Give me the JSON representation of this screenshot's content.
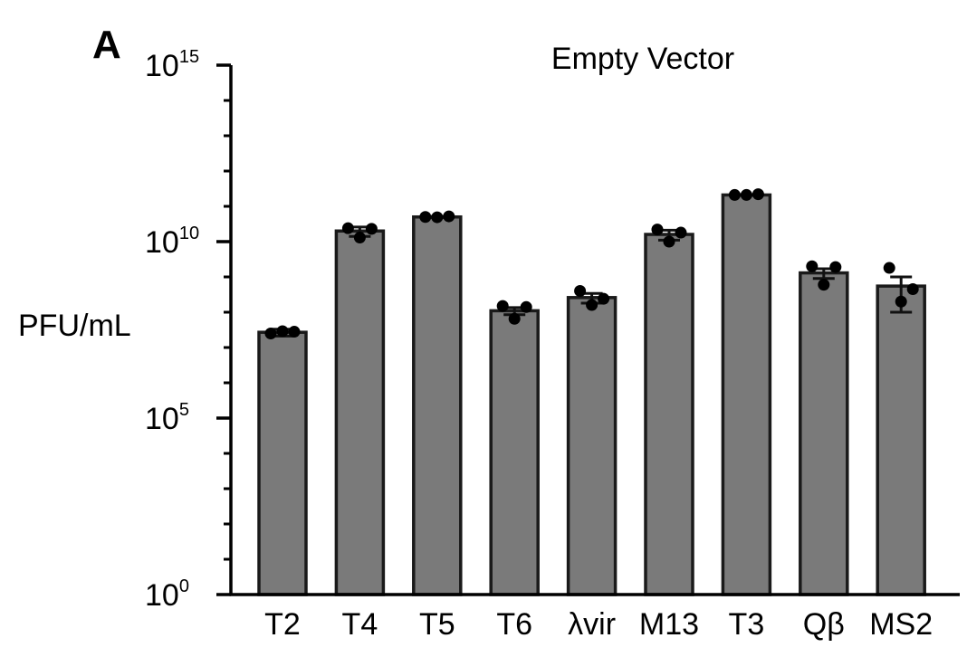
{
  "panel_label": "A",
  "chart_data": {
    "type": "bar",
    "title": "Empty Vector",
    "xlabel": "",
    "ylabel": "PFU/mL",
    "yscale": "log",
    "ylim": [
      1,
      1000000000000000.0
    ],
    "ytick_labels": [
      {
        "value": 1,
        "base": "10",
        "exp": "0"
      },
      {
        "value": 100000,
        "base": "10",
        "exp": "5"
      },
      {
        "value": 10000000000,
        "base": "10",
        "exp": "10"
      },
      {
        "value": 1000000000000000,
        "base": "10",
        "exp": "15"
      }
    ],
    "minor_ticks": "each decade",
    "categories": [
      "T2",
      "T4",
      "T5",
      "T6",
      "λvir",
      "M13",
      "T3",
      "Qβ",
      "MS2"
    ],
    "values": [
      27000000.0,
      20000000000.0,
      50000000000.0,
      110000000.0,
      260000000.0,
      16000000000.0,
      210000000000.0,
      1300000000.0,
      550000000.0
    ],
    "error": [
      6000000.0,
      6000000000.0,
      2000000000.0,
      25000000.0,
      80000000.0,
      5000000000.0,
      5000000000.0,
      400000000.0,
      450000000.0
    ],
    "points": [
      [
        25000000.0,
        28000000.0,
        29000000.0
      ],
      [
        24000000000.0,
        23000000000.0,
        13000000000.0
      ],
      [
        50000000000.0,
        52000000000.0,
        49000000000.0
      ],
      [
        150000000.0,
        140000000.0,
        65000000.0
      ],
      [
        400000000.0,
        240000000.0,
        160000000.0
      ],
      [
        22000000000.0,
        18000000000.0,
        10000000000.0
      ],
      [
        210000000000.0,
        220000000000.0,
        210000000000.0
      ],
      [
        2000000000.0,
        1900000000.0,
        600000000.0
      ],
      [
        1800000000.0,
        450000000.0,
        200000000.0
      ]
    ],
    "bar_color": "#7a7a7a",
    "edge_color": "#1a1a1a",
    "point_color": "#000000",
    "legend": "none",
    "grid": false
  }
}
